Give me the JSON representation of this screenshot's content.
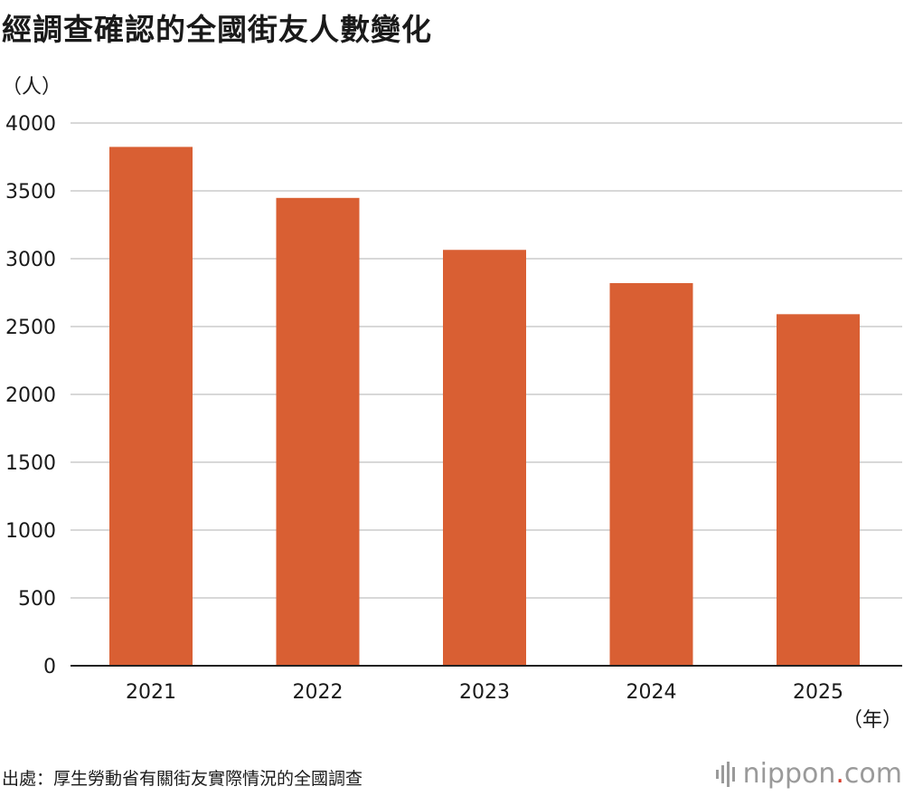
{
  "title": "經調查確認的全國街友人數變化",
  "source": "出處：厚生勞動省有關街友實際情況的全國調查",
  "brand": {
    "name": "nippon",
    "dot": ".",
    "tld": "com"
  },
  "colors": {
    "bar": "#d95f33",
    "grid": "#cccccc",
    "axis": "#222222",
    "brand_dot": "#d83a2a"
  },
  "chart_data": {
    "type": "bar",
    "title": "經調查確認的全國街友人數變化",
    "xlabel": "（年）",
    "ylabel": "（人）",
    "categories": [
      "2021",
      "2022",
      "2023",
      "2024",
      "2025"
    ],
    "values": [
      3824,
      3448,
      3065,
      2820,
      2591
    ],
    "ylim": [
      0,
      4000
    ],
    "yticks": [
      "0",
      "500",
      "1000",
      "1500",
      "2000",
      "2500",
      "3000",
      "3500",
      "4000"
    ],
    "grid": true,
    "legend": "none"
  }
}
